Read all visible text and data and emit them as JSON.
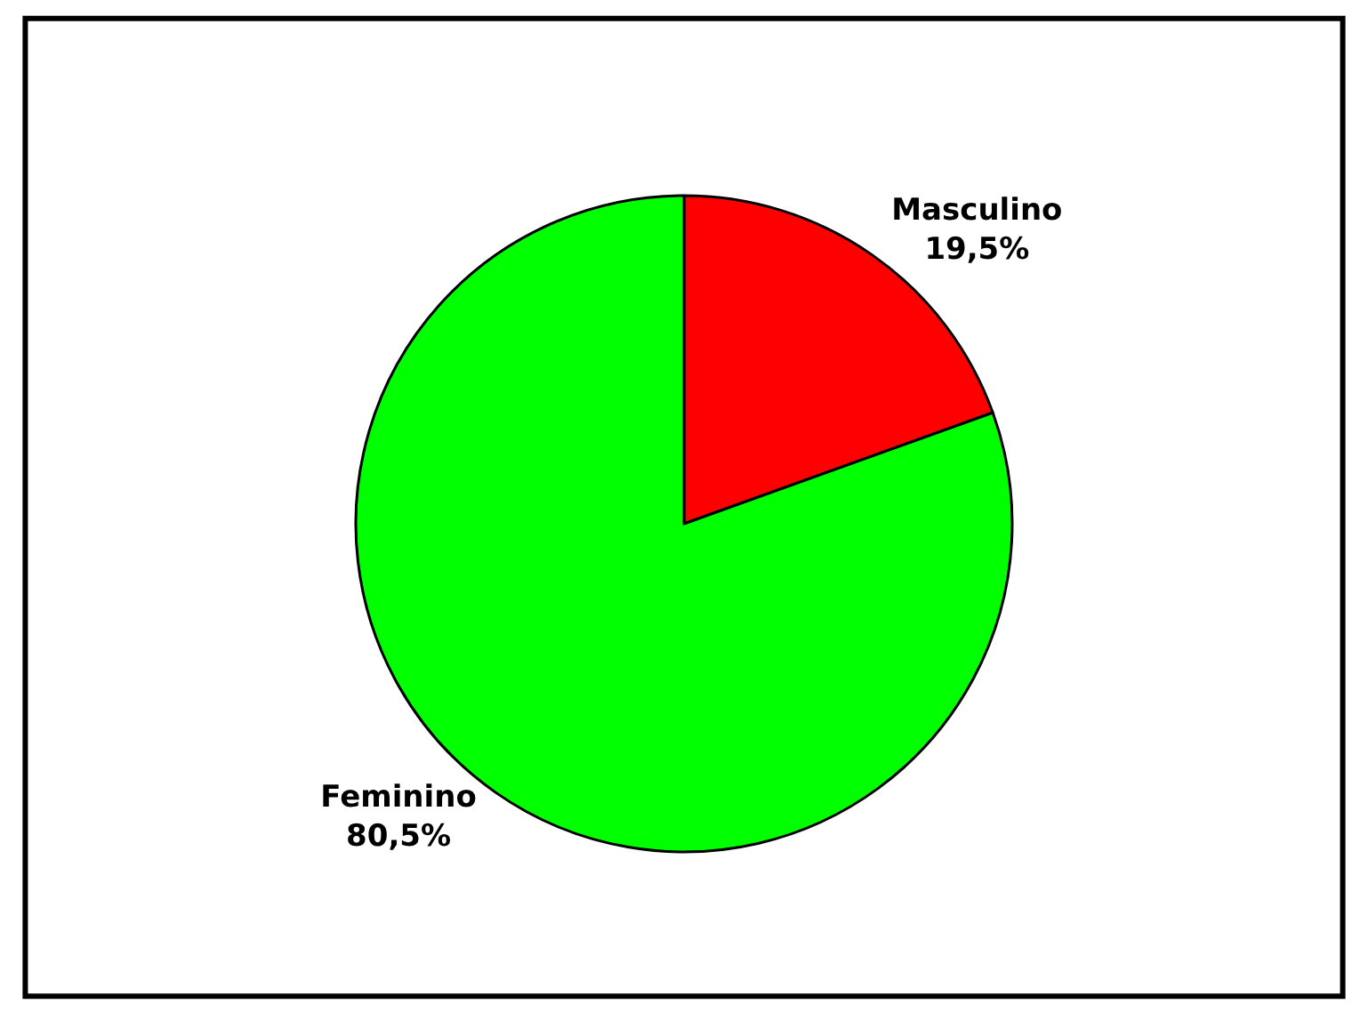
{
  "chart_data": {
    "type": "pie",
    "categories": [
      "Masculino",
      "Feminino"
    ],
    "values": [
      19.5,
      80.5
    ],
    "colors": [
      "#ff0000",
      "#00ff00"
    ],
    "value_labels": [
      "19,5%",
      "80,5%"
    ],
    "legend": false
  }
}
